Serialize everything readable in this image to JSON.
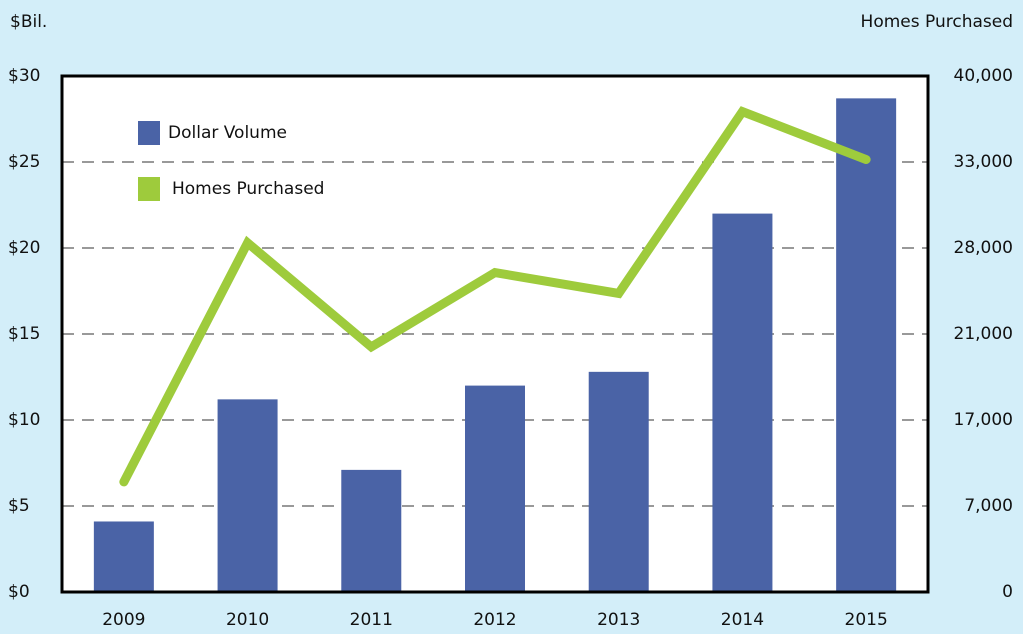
{
  "chart_data": {
    "type": "bar",
    "y_label": "$Bil.",
    "y2_label": "Homes Purchased",
    "categories": [
      "2009",
      "2010",
      "2011",
      "2012",
      "2013",
      "2014",
      "2015"
    ],
    "series": [
      {
        "name": "Dollar Volume",
        "type": "bar",
        "color": "#4a63a6",
        "values": [
          4.1,
          11.2,
          7.1,
          12.0,
          12.8,
          22.0,
          28.7
        ]
      },
      {
        "name": "Homes Purchased",
        "type": "line",
        "axis": "y2",
        "color": "#9ecb3c",
        "values": [
          9800,
          28300,
          20400,
          26000,
          24300,
          37100,
          33200
        ]
      }
    ],
    "ylim": [
      0,
      30
    ],
    "yticks": [
      {
        "value": 0,
        "label": "$0"
      },
      {
        "value": 5,
        "label": "$5"
      },
      {
        "value": 10,
        "label": "$10"
      },
      {
        "value": 15,
        "label": "$15"
      },
      {
        "value": 20,
        "label": "$20"
      },
      {
        "value": 25,
        "label": "$25"
      },
      {
        "value": 30,
        "label": "$30"
      }
    ],
    "y2lim": [
      0,
      40000
    ],
    "y2ticks": [
      0,
      {
        "value": 7000,
        "label": "7,000"
      },
      {
        "value": 17000,
        "label": "17,000"
      },
      {
        "value": 21000,
        "label": "21,000"
      },
      {
        "value": 28000,
        "label": "28,000"
      },
      {
        "value": 33000,
        "label": "33,000"
      },
      {
        "value": 40000,
        "label": "40,000"
      }
    ],
    "grid": true,
    "legend": "upper left"
  }
}
